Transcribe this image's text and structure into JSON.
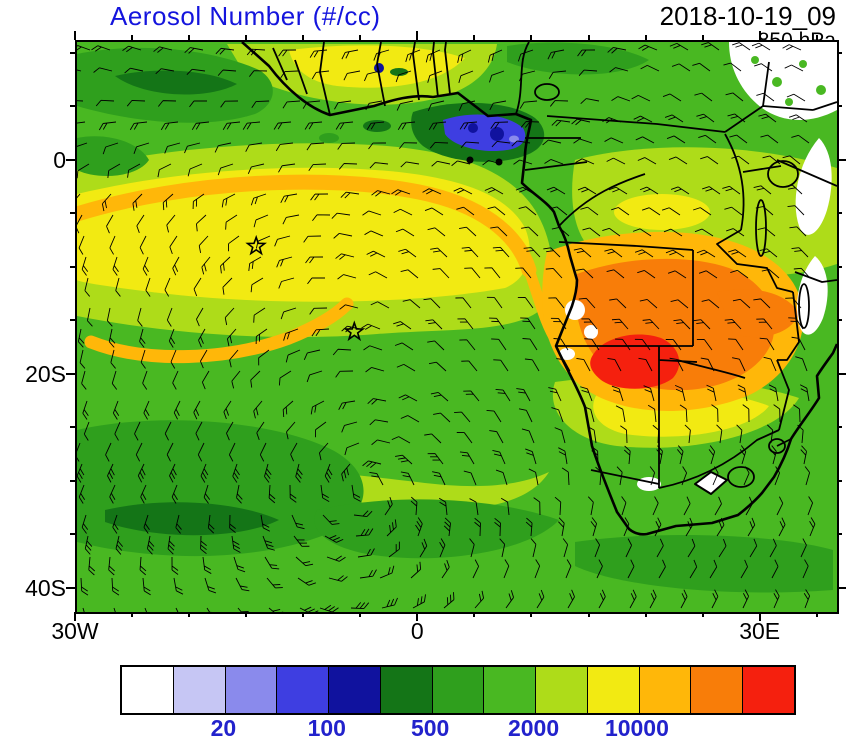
{
  "header": {
    "title": "Aerosol Number (#/cc)",
    "title_color": "#1414dd",
    "datetime": "2018-10-19_09",
    "level": "850 hPa"
  },
  "map": {
    "frame": {
      "lon_min": -30,
      "lon_max": 36.6,
      "lat_min": -42.1,
      "lat_max": 11.2
    },
    "x_axis_labels": [
      {
        "text": "30W",
        "lon": -30
      },
      {
        "text": "0",
        "lon": 0
      },
      {
        "text": "30E",
        "lon": 30
      }
    ],
    "y_axis_labels": [
      {
        "text": "0",
        "lat": 0
      },
      {
        "text": "20S",
        "lat": -20
      },
      {
        "text": "40S",
        "lat": -40
      }
    ],
    "markers": [
      {
        "name": "ascension-island-star",
        "symbol": "star",
        "lon": -14.3,
        "lat": -7.9
      },
      {
        "name": "st-helena-star",
        "symbol": "star",
        "lon": -5.7,
        "lat": -15.9
      }
    ]
  },
  "colorbar": {
    "colors": [
      "#ffffff",
      "#c6c6f4",
      "#8a8aec",
      "#3e3ee1",
      "#10129e",
      "#147517",
      "#2f9f1d",
      "#49b822",
      "#aedc19",
      "#f2ea12",
      "#ffb709",
      "#f87d09",
      "#f5200e"
    ],
    "label_color": "#2222cc",
    "labels": [
      {
        "text": "20",
        "boundary_index": 2
      },
      {
        "text": "100",
        "boundary_index": 4
      },
      {
        "text": "500",
        "boundary_index": 6
      },
      {
        "text": "2000",
        "boundary_index": 8
      },
      {
        "text": "10000",
        "boundary_index": 10
      }
    ]
  },
  "chart_data": {
    "type": "heatmap",
    "title": "Aerosol Number (#/cc)",
    "datetime": "2018-10-19_09",
    "pressure_level": "850 hPa",
    "units": "#/cc",
    "projection": "cylindrical lat-lon over Africa / South Atlantic",
    "lon_range": [
      -30,
      36.6
    ],
    "lat_range": [
      -42.1,
      11.2
    ],
    "x_tick_major_deg": 30,
    "x_tick_minor_deg": 5,
    "y_tick_major_deg": 20,
    "y_tick_minor_deg": 5,
    "color_levels": [
      10,
      20,
      50,
      100,
      200,
      500,
      1000,
      2000,
      5000,
      10000,
      20000,
      50000
    ],
    "labeled_levels": [
      20,
      100,
      500,
      2000,
      10000
    ],
    "palette": [
      "#ffffff",
      "#c6c6f4",
      "#8a8aec",
      "#3e3ee1",
      "#10129e",
      "#147517",
      "#2f9f1d",
      "#49b822",
      "#aedc19",
      "#f2ea12",
      "#ffb709",
      "#f87d09",
      "#f5200e"
    ],
    "overlays": [
      "wind-barbs",
      "coastlines",
      "country-borders",
      "island-star-markers"
    ],
    "features": [
      {
        "region": "South Atlantic background (20S-42S)",
        "value_range": "1000-2000 #/cc"
      },
      {
        "region": "Tropical Atlantic smoke outflow band (0-15S, full width)",
        "value_range": "2000-10000 #/cc"
      },
      {
        "region": "Arc plume off Angola/Congo coast curving west near 5-10S",
        "value_range": "5000-10000 #/cc"
      },
      {
        "region": "Secondary arc near 15-18S, 25W-5W",
        "value_range": "5000-10000 #/cc"
      },
      {
        "region": "Biomass-burning plume over Angola/Zambia/Zimbabwe",
        "value_range": "10000-20000 #/cc"
      },
      {
        "region": "Burning core near 20S, 22E",
        "value_range": "> 50000 #/cc",
        "maximum": true
      },
      {
        "region": "Gulf of Guinea coastal waters near 4N, 5E",
        "value_range": "20-200 #/cc"
      },
      {
        "region": "East African / Ethiopian highlands and NE corner",
        "value_range": "< 10 #/cc"
      },
      {
        "region": "Southwest Atlantic corner",
        "value_range": "500-1000 #/cc"
      }
    ],
    "markers": [
      {
        "name": "Ascension Island",
        "lon": -14.3,
        "lat": -7.9
      },
      {
        "name": "St Helena",
        "lon": -5.7,
        "lat": -15.9
      }
    ]
  }
}
